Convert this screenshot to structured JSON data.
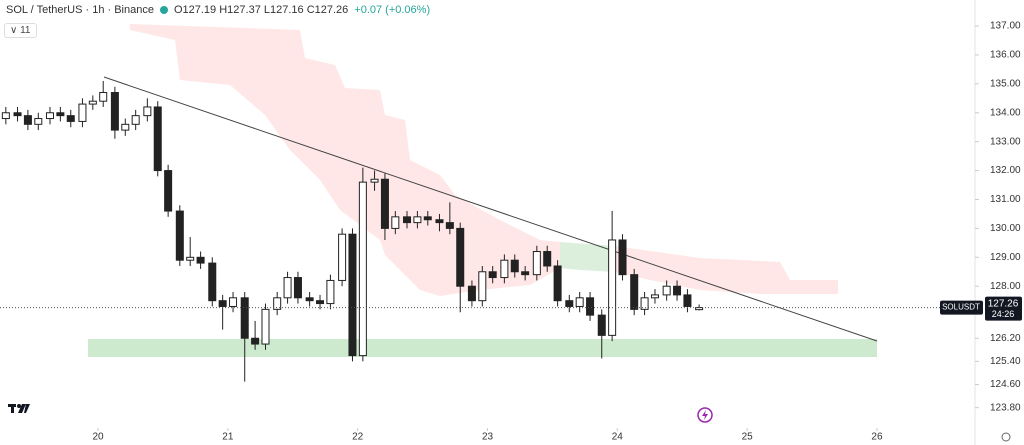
{
  "chart_data": {
    "type": "candlestick",
    "title": "SOL / TetherUS · 1h · Binance",
    "ohlc_label": "O127.19 H127.37 L127.16 C127.26",
    "change_label": "+0.07 (+0.06%)",
    "indicator_count": "11",
    "symbol_tag": "SOLUSDT",
    "last_price": {
      "value": 127.26,
      "label": "127.26"
    },
    "countdown": "24:26",
    "up_color": "#ffffff",
    "down_color": "#222222",
    "x": [
      19.29,
      19.38,
      19.46,
      19.54,
      19.63,
      19.71,
      19.79,
      19.88,
      19.96,
      20.04,
      20.13,
      20.21,
      20.29,
      20.38,
      20.46,
      20.54,
      20.63,
      20.71,
      20.79,
      20.88,
      20.96,
      21.04,
      21.13,
      21.21,
      21.29,
      21.38,
      21.46,
      21.54,
      21.63,
      21.71,
      21.79,
      21.88,
      21.96,
      22.04,
      22.13,
      22.21,
      22.29,
      22.38,
      22.46,
      22.54,
      22.63,
      22.71,
      22.79,
      22.88,
      22.96,
      23.04,
      23.13,
      23.21,
      23.29,
      23.38,
      23.46,
      23.54,
      23.63,
      23.71,
      23.79,
      23.88,
      23.96,
      24.04,
      24.13,
      24.21,
      24.29,
      24.38,
      24.46,
      24.54,
      24.63
    ],
    "open": [
      133.8,
      134.0,
      133.9,
      133.6,
      133.8,
      134.0,
      133.9,
      133.7,
      134.3,
      134.4,
      134.7,
      133.4,
      133.6,
      133.9,
      134.2,
      132.0,
      130.6,
      128.9,
      129.0,
      128.8,
      127.5,
      127.3,
      127.6,
      126.2,
      126.0,
      127.2,
      127.6,
      128.3,
      127.6,
      127.5,
      127.4,
      128.2,
      129.8,
      125.6,
      131.6,
      131.7,
      130.0,
      130.4,
      130.2,
      130.4,
      130.3,
      130.2,
      130.0,
      128.0,
      127.5,
      128.5,
      128.3,
      128.9,
      128.5,
      128.4,
      129.2,
      128.7,
      127.5,
      127.3,
      127.6,
      127.0,
      126.3,
      129.6,
      128.4,
      127.2,
      127.6,
      127.7,
      128.0,
      127.7,
      127.19
    ],
    "high": [
      134.2,
      134.2,
      134.1,
      134.0,
      134.2,
      134.2,
      134.1,
      134.5,
      134.6,
      135.1,
      134.9,
      133.8,
      134.1,
      134.5,
      134.4,
      132.2,
      130.8,
      129.7,
      129.2,
      129.0,
      127.7,
      127.8,
      127.8,
      126.8,
      127.4,
      127.8,
      128.5,
      128.5,
      127.8,
      127.7,
      128.4,
      130.0,
      130.0,
      132.1,
      132.0,
      131.9,
      130.6,
      130.6,
      130.6,
      130.6,
      130.5,
      130.9,
      130.2,
      128.2,
      128.7,
      128.7,
      129.1,
      129.1,
      128.7,
      129.4,
      129.4,
      128.9,
      127.7,
      127.8,
      127.8,
      127.2,
      130.6,
      129.8,
      128.6,
      127.8,
      127.9,
      128.2,
      128.2,
      127.9,
      127.37
    ],
    "low": [
      133.6,
      133.7,
      133.4,
      133.4,
      133.6,
      133.7,
      133.5,
      133.5,
      134.1,
      134.2,
      133.1,
      133.2,
      133.4,
      133.7,
      131.8,
      130.4,
      128.7,
      128.7,
      128.6,
      127.3,
      126.5,
      127.1,
      124.7,
      125.8,
      125.8,
      127.0,
      127.4,
      127.4,
      127.3,
      127.2,
      127.2,
      128.0,
      125.4,
      125.4,
      131.3,
      129.6,
      129.8,
      130.0,
      130.0,
      130.1,
      129.9,
      129.8,
      127.1,
      127.3,
      127.3,
      128.1,
      128.1,
      128.3,
      128.2,
      128.2,
      128.5,
      127.3,
      127.1,
      127.1,
      126.8,
      125.5,
      126.1,
      128.2,
      127.0,
      127.0,
      127.4,
      127.5,
      127.5,
      127.1,
      127.16
    ],
    "close": [
      134.0,
      133.9,
      133.6,
      133.8,
      134.0,
      133.9,
      133.7,
      134.3,
      134.4,
      134.7,
      133.4,
      133.6,
      133.9,
      134.2,
      132.0,
      130.6,
      128.9,
      129.0,
      128.8,
      127.5,
      127.3,
      127.6,
      126.2,
      126.0,
      127.2,
      127.6,
      128.3,
      127.6,
      127.5,
      127.4,
      128.2,
      129.8,
      125.6,
      131.6,
      131.7,
      130.0,
      130.4,
      130.2,
      130.4,
      130.3,
      130.2,
      130.0,
      128.0,
      127.5,
      128.5,
      128.3,
      128.9,
      128.5,
      128.4,
      129.2,
      128.7,
      127.5,
      127.3,
      127.6,
      127.0,
      126.3,
      129.6,
      128.4,
      127.2,
      127.6,
      127.7,
      128.0,
      127.7,
      127.3,
      127.26
    ],
    "xlim": [
      19.245,
      26.755
    ],
    "ylim": [
      137.9,
      123.2
    ],
    "xticks": [
      20,
      21,
      22,
      23,
      24,
      25,
      26
    ],
    "yticks": [
      {
        "value": 137,
        "label": "137.00"
      },
      {
        "value": 136,
        "label": "136.00"
      },
      {
        "value": 135,
        "label": "135.00"
      },
      {
        "value": 134,
        "label": "134.00"
      },
      {
        "value": 133,
        "label": "133.00"
      },
      {
        "value": 132,
        "label": "132.00"
      },
      {
        "value": 131,
        "label": "131.00"
      },
      {
        "value": 130,
        "label": "130.00"
      },
      {
        "value": 129,
        "label": "129.00"
      },
      {
        "value": 128,
        "label": "128.00"
      },
      {
        "value": 126.2,
        "label": "126.20"
      },
      {
        "value": 125.4,
        "label": "125.40"
      },
      {
        "value": 124.6,
        "label": "124.60"
      },
      {
        "value": 123.8,
        "label": "123.80"
      }
    ]
  }
}
